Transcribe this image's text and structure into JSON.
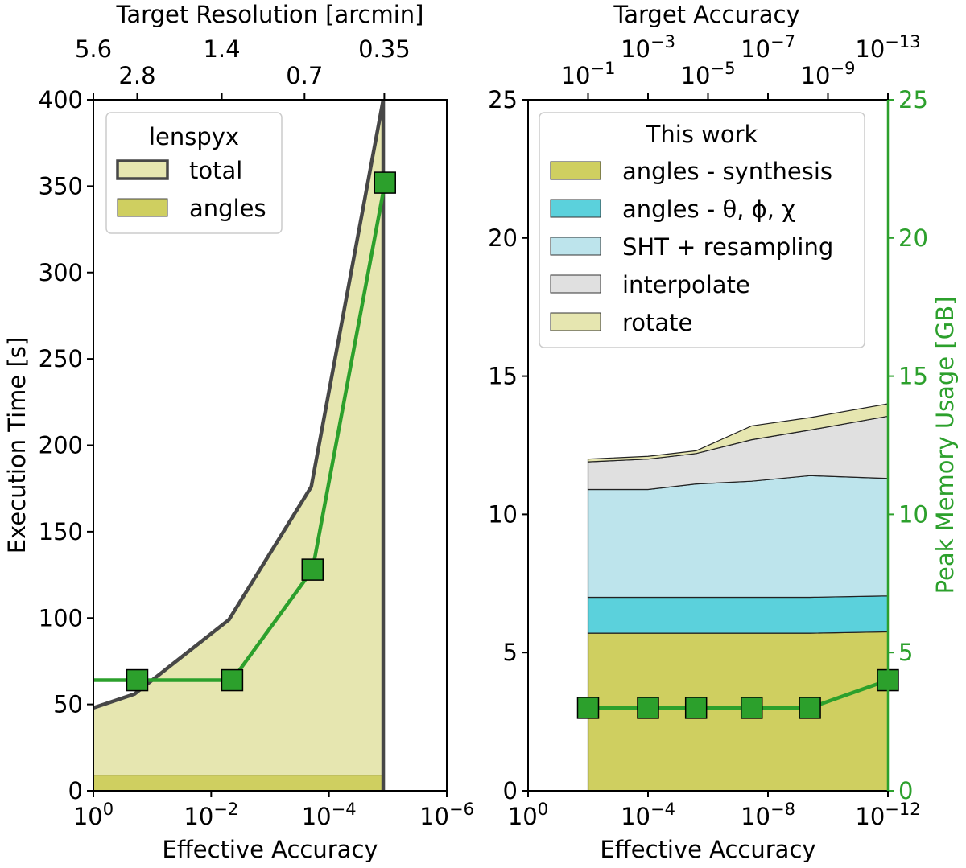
{
  "chart_data": [
    {
      "type": "area",
      "panel": "left",
      "xscale": "log",
      "xlabel": "Effective Accuracy",
      "ylabel": "Execution Time [s]",
      "xlim": [
        1,
        1e-06
      ],
      "ylim": [
        0,
        400
      ],
      "xticks": [
        {
          "value": 1,
          "base": "10",
          "exp": "0"
        },
        {
          "value": 0.01,
          "base": "10",
          "exp": "−2"
        },
        {
          "value": 0.0001,
          "base": "10",
          "exp": "−4"
        },
        {
          "value": 1e-06,
          "base": "10",
          "exp": "−6"
        }
      ],
      "yticks": [
        "0",
        "50",
        "100",
        "150",
        "200",
        "250",
        "300",
        "350",
        "400"
      ],
      "top_axis": {
        "label": "Target Resolution [arcmin]",
        "ticks": [
          {
            "x": 1,
            "text": "5.6",
            "row": 0
          },
          {
            "x": 0.18,
            "text": "2.8",
            "row": 1
          },
          {
            "x": 0.0066,
            "text": "1.4",
            "row": 0
          },
          {
            "x": 0.00026,
            "text": "0.7",
            "row": 1
          },
          {
            "x": 1.15e-05,
            "text": "0.35",
            "row": 0
          }
        ]
      },
      "legend": {
        "title": "lenspyx",
        "position": "top-left",
        "entries": [
          {
            "label": "total",
            "color": "#e6e6b0",
            "edge": "#474747"
          },
          {
            "label": "angles",
            "color": "#cfcf60",
            "edge": "#474747"
          }
        ]
      },
      "series": [
        {
          "name": "total",
          "color": "#e6e6b0",
          "line_color": "#474747",
          "x": [
            1,
            0.2,
            0.005,
            0.0002,
            1.2e-05
          ],
          "y": [
            48,
            56,
            99,
            176,
            400
          ]
        },
        {
          "name": "angles",
          "color": "#cfcf60",
          "x": [
            1,
            1.2e-05
          ],
          "y": [
            9,
            9
          ]
        }
      ],
      "memory": {
        "name": "Peak Memory Usage",
        "color": "#2ca02c",
        "scale_max": 25,
        "x": [
          1,
          0.18,
          0.0044,
          0.00019,
          1.12e-05
        ],
        "y": [
          4.0,
          4.0,
          4.0,
          8.0,
          22.0
        ],
        "markers": [
          false,
          true,
          true,
          true,
          true
        ]
      }
    },
    {
      "type": "area",
      "panel": "right",
      "xscale": "log",
      "xlabel": "Effective Accuracy",
      "ylabel": "Peak Memory Usage [GB]",
      "xlim": [
        1,
        1e-12
      ],
      "ylim": [
        0,
        25
      ],
      "y2lim": [
        0,
        25
      ],
      "xticks": [
        {
          "value": 1,
          "base": "10",
          "exp": "0"
        },
        {
          "value": 0.0001,
          "base": "10",
          "exp": "−4"
        },
        {
          "value": 1e-08,
          "base": "10",
          "exp": "−8"
        },
        {
          "value": 1e-12,
          "base": "10",
          "exp": "−12"
        }
      ],
      "yticks": [
        "0",
        "5",
        "10",
        "15",
        "20",
        "25"
      ],
      "y2ticks": [
        "0",
        "5",
        "10",
        "15",
        "20",
        "25"
      ],
      "top_axis": {
        "label": "Target Accuracy",
        "ticks": [
          {
            "x": 0.01,
            "base": "10",
            "exp": "−1",
            "row": 1
          },
          {
            "x": 0.0001,
            "base": "10",
            "exp": "−3",
            "row": 0
          },
          {
            "x": 1e-06,
            "base": "10",
            "exp": "−5",
            "row": 1
          },
          {
            "x": 1e-08,
            "base": "10",
            "exp": "−7",
            "row": 0
          },
          {
            "x": 1e-10,
            "base": "10",
            "exp": "−9",
            "row": 1
          },
          {
            "x": 1e-12,
            "base": "10",
            "exp": "−13",
            "row": 0
          }
        ]
      },
      "legend": {
        "title": "This work",
        "position": "top-right",
        "entries": [
          {
            "label": "angles - synthesis",
            "color": "#cfcf60"
          },
          {
            "label": "angles - θ, ϕ, χ",
            "color": "#5bd1dc"
          },
          {
            "label": "SHT + resampling",
            "color": "#bde4ec"
          },
          {
            "label": "interpolate",
            "color": "#e0e0e0"
          },
          {
            "label": "rotate",
            "color": "#e6e6b0"
          }
        ]
      },
      "x": [
        0.01,
        0.0001,
        2.5e-06,
        3.5e-08,
        4e-10,
        1e-12
      ],
      "series": [
        {
          "name": "angles - synthesis",
          "color": "#cfcf60",
          "values": [
            5.7,
            5.7,
            5.7,
            5.7,
            5.7,
            5.75
          ]
        },
        {
          "name": "angles - θ, ϕ, χ",
          "color": "#5bd1dc",
          "values": [
            1.3,
            1.3,
            1.3,
            1.3,
            1.3,
            1.3
          ]
        },
        {
          "name": "SHT + resampling",
          "color": "#bde4ec",
          "values": [
            3.9,
            3.9,
            4.1,
            4.2,
            4.4,
            4.25
          ]
        },
        {
          "name": "interpolate",
          "color": "#e0e0e0",
          "values": [
            1.0,
            1.1,
            1.1,
            1.5,
            1.65,
            2.25
          ]
        },
        {
          "name": "rotate",
          "color": "#e6e6b0",
          "values": [
            0.1,
            0.1,
            0.1,
            0.5,
            0.45,
            0.45
          ]
        }
      ],
      "memory": {
        "name": "Peak Memory Usage",
        "color": "#2ca02c",
        "x": [
          0.01,
          0.0001,
          2.5e-06,
          3.5e-08,
          4e-10,
          1e-12
        ],
        "y": [
          3,
          3,
          3,
          3,
          3,
          4
        ],
        "markers": [
          true,
          true,
          true,
          true,
          true,
          true
        ]
      }
    }
  ]
}
